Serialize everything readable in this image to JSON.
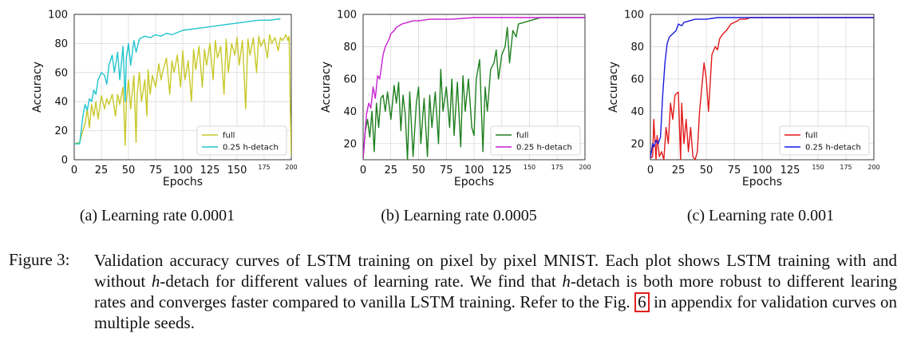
{
  "charts": [
    {
      "subcaption": "(a) Learning rate 0.0001",
      "chart_data": {
        "type": "line",
        "xlabel": "Epochs",
        "ylabel": "Accuracy",
        "xlim": [
          0,
          200
        ],
        "ylim": [
          0,
          100
        ],
        "xticks": [
          "0",
          "25",
          "50",
          "75",
          "100",
          "125",
          "150",
          "175",
          "200"
        ],
        "yticks": [
          "0",
          "20",
          "40",
          "60",
          "80",
          "100"
        ],
        "grid": true,
        "legend_position": "bottom-right",
        "series": [
          {
            "name": "full",
            "color": "#c8c82a",
            "x": [
              0,
              5,
              8,
              10,
              12,
              14,
              16,
              18,
              20,
              22,
              25,
              28,
              30,
              32,
              35,
              38,
              40,
              42,
              45,
              47,
              48,
              50,
              52,
              55,
              57,
              58,
              60,
              62,
              65,
              67,
              68,
              70,
              72,
              75,
              78,
              80,
              82,
              85,
              88,
              90,
              92,
              95,
              98,
              100,
              102,
              105,
              108,
              110,
              112,
              115,
              118,
              120,
              122,
              125,
              128,
              130,
              132,
              135,
              138,
              140,
              142,
              145,
              148,
              150,
              152,
              155,
              158,
              160,
              162,
              165,
              168,
              170,
              172,
              175,
              178,
              180,
              182,
              185,
              188,
              190,
              192,
              195,
              197,
              198,
              199,
              200
            ],
            "y": [
              11,
              12,
              20,
              25,
              35,
              22,
              38,
              30,
              40,
              28,
              44,
              35,
              42,
              38,
              45,
              30,
              45,
              38,
              50,
              10,
              40,
              55,
              35,
              58,
              12,
              45,
              60,
              40,
              55,
              30,
              62,
              45,
              58,
              50,
              66,
              55,
              62,
              70,
              45,
              68,
              60,
              72,
              50,
              75,
              55,
              68,
              40,
              76,
              62,
              78,
              50,
              76,
              65,
              80,
              55,
              82,
              70,
              78,
              45,
              83,
              60,
              80,
              72,
              84,
              65,
              82,
              35,
              83,
              72,
              84,
              60,
              85,
              78,
              83,
              70,
              86,
              80,
              84,
              75,
              84,
              82,
              86,
              82,
              85,
              40,
              2
            ]
          },
          {
            "name": "0.25 h-detach",
            "color": "#22c4cf",
            "x": [
              0,
              5,
              8,
              10,
              12,
              14,
              16,
              18,
              20,
              22,
              25,
              28,
              30,
              32,
              35,
              37,
              40,
              42,
              45,
              47,
              48,
              50,
              52,
              55,
              57,
              60,
              65,
              70,
              75,
              80,
              85,
              90,
              100,
              110,
              120,
              130,
              140,
              150,
              160,
              170,
              180,
              190
            ],
            "y": [
              11,
              11,
              30,
              38,
              34,
              42,
              40,
              48,
              45,
              55,
              60,
              58,
              52,
              65,
              72,
              60,
              74,
              55,
              78,
              40,
              70,
              80,
              65,
              82,
              74,
              83,
              85,
              84,
              86,
              85,
              87,
              86,
              89,
              90,
              91,
              92,
              93,
              94,
              95,
              96,
              96,
              97
            ]
          }
        ]
      }
    },
    {
      "subcaption": "(b) Learning rate 0.0005",
      "chart_data": {
        "type": "line",
        "xlabel": "Epochs",
        "ylabel": "Accuracy",
        "xlim": [
          0,
          200
        ],
        "ylim": [
          10,
          100
        ],
        "xticks": [
          "0",
          "25",
          "50",
          "75",
          "100",
          "125",
          "150",
          "175",
          "200"
        ],
        "yticks": [
          "20",
          "40",
          "60",
          "80",
          "100"
        ],
        "grid": true,
        "legend_position": "bottom-right",
        "series": [
          {
            "name": "full",
            "color": "#1f7f1f",
            "x": [
              0,
              2,
              4,
              6,
              8,
              10,
              12,
              14,
              16,
              18,
              20,
              22,
              25,
              28,
              30,
              32,
              34,
              36,
              38,
              40,
              42,
              45,
              48,
              50,
              52,
              55,
              58,
              60,
              62,
              65,
              68,
              70,
              72,
              75,
              78,
              80,
              82,
              85,
              88,
              90,
              92,
              95,
              98,
              100,
              102,
              105,
              108,
              110,
              112,
              115,
              118,
              120,
              122,
              125,
              128,
              130,
              132,
              135,
              138,
              140,
              145,
              150,
              155,
              160,
              170,
              180,
              190,
              200
            ],
            "y": [
              11,
              28,
              35,
              24,
              40,
              15,
              45,
              30,
              48,
              50,
              40,
              52,
              35,
              56,
              45,
              58,
              28,
              50,
              38,
              10,
              52,
              12,
              45,
              55,
              20,
              48,
              12,
              50,
              30,
              52,
              20,
              66,
              40,
              55,
              30,
              60,
              25,
              58,
              18,
              62,
              40,
              60,
              30,
              25,
              60,
              72,
              15,
              55,
              40,
              66,
              70,
              78,
              60,
              75,
              80,
              92,
              70,
              90,
              86,
              94,
              95,
              96,
              97,
              98,
              98,
              98,
              98,
              98
            ]
          },
          {
            "name": "0.25 h-detach",
            "color": "#c71fd0",
            "x": [
              0,
              3,
              5,
              7,
              9,
              11,
              13,
              15,
              18,
              20,
              23,
              25,
              28,
              30,
              35,
              40,
              45,
              50,
              60,
              70,
              80,
              100,
              120,
              140,
              160,
              180,
              200
            ],
            "y": [
              11,
              38,
              45,
              42,
              55,
              48,
              62,
              60,
              75,
              80,
              84,
              88,
              90,
              92,
              94,
              95,
              96,
              96,
              97,
              97,
              97,
              98,
              98,
              98,
              98,
              98,
              98
            ]
          }
        ]
      }
    },
    {
      "subcaption": "(c) Learning rate 0.001",
      "chart_data": {
        "type": "line",
        "xlabel": "Epochs",
        "ylabel": "Accuracy",
        "xlim": [
          0,
          200
        ],
        "ylim": [
          10,
          100
        ],
        "xticks": [
          "0",
          "25",
          "50",
          "75",
          "100",
          "125",
          "150",
          "175",
          "200"
        ],
        "yticks": [
          "20",
          "40",
          "60",
          "80",
          "100"
        ],
        "grid": true,
        "legend_position": "bottom-right",
        "series": [
          {
            "name": "full",
            "color": "#e21a1a",
            "x": [
              0,
              2,
              3,
              5,
              6,
              8,
              10,
              12,
              14,
              16,
              18,
              20,
              22,
              25,
              27,
              28,
              30,
              32,
              34,
              36,
              38,
              40,
              42,
              44,
              46,
              48,
              50,
              52,
              55,
              58,
              60,
              62,
              65,
              68,
              70,
              72,
              75,
              78,
              80,
              85,
              90,
              100,
              120,
              140,
              160,
              180,
              200
            ],
            "y": [
              11,
              12,
              35,
              10,
              25,
              12,
              15,
              10,
              30,
              20,
              45,
              35,
              50,
              52,
              10,
              45,
              20,
              35,
              15,
              30,
              12,
              10,
              15,
              40,
              55,
              70,
              60,
              40,
              75,
              80,
              78,
              85,
              88,
              90,
              92,
              94,
              95,
              96,
              97,
              97,
              98,
              98,
              98,
              98,
              98,
              98,
              98
            ]
          },
          {
            "name": "0.25 h-detach",
            "color": "#1a1adf",
            "x": [
              0,
              2,
              3,
              5,
              7,
              9,
              11,
              13,
              15,
              17,
              20,
              23,
              25,
              28,
              30,
              35,
              40,
              45,
              50,
              60,
              70,
              80,
              100,
              120,
              140,
              160,
              180,
              200
            ],
            "y": [
              11,
              20,
              18,
              22,
              20,
              24,
              50,
              70,
              82,
              86,
              88,
              90,
              94,
              93,
              95,
              96,
              97,
              97,
              97,
              98,
              98,
              98,
              98,
              98,
              98,
              98,
              98,
              98
            ]
          }
        ]
      }
    }
  ],
  "caption": {
    "label": "Figure 3:",
    "text_1": "Validation accuracy curves of LSTM training on pixel by pixel MNIST. Each plot shows LSTM training with and without ",
    "h1": "h",
    "text_2": "-detach for different values of learning rate.  We find that ",
    "h2": "h",
    "text_3": "-detach is both more robust to different learing rates and converges faster compared to vanilla LSTM training. Refer to the Fig. ",
    "figref": "6",
    "text_4": " in appendix for validation curves on multiple seeds."
  }
}
